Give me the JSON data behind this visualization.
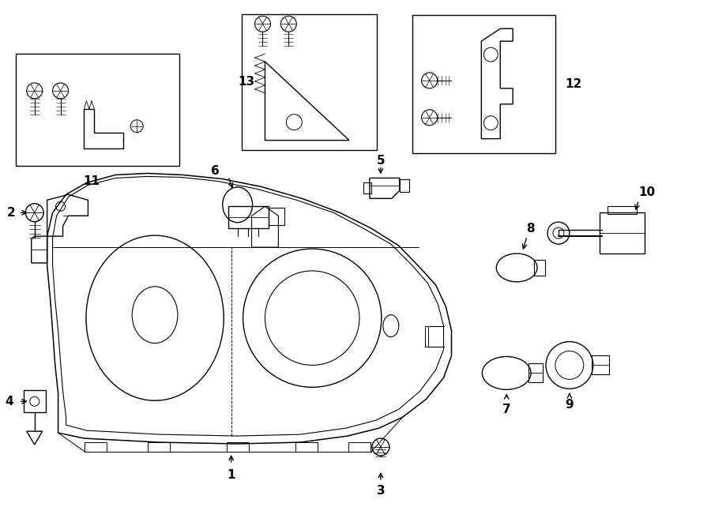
{
  "bg_color": "#ffffff",
  "line_color": "#000000",
  "lw": 1.0,
  "fig_width": 9.0,
  "fig_height": 6.61,
  "xlim": [
    0,
    9.0
  ],
  "ylim": [
    0,
    6.61
  ]
}
